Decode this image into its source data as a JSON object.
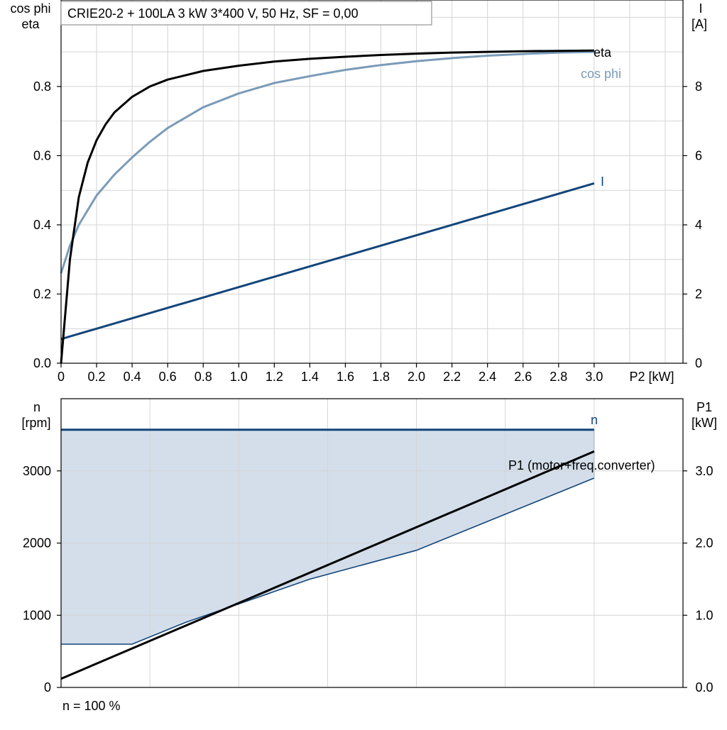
{
  "colors": {
    "eta": "#000000",
    "cos_phi": "#7b9bb8",
    "current": "#12457a",
    "speed": "#12457a",
    "p1": "#000000",
    "area_fill": "#d3deea",
    "grid": "#d4d4d4"
  },
  "chart_data": [
    {
      "type": "line",
      "title": "CRIE20-2 + 100LA   3 kW   3*400 V, 50 Hz, SF = 0,00",
      "xlabel": "P2 [kW]",
      "ylabel_left": [
        "cos phi",
        "eta"
      ],
      "ylabel_right": [
        "I",
        "[A]"
      ],
      "xlim": [
        0,
        3.5
      ],
      "ylim_left": [
        0,
        1.05
      ],
      "ylim_right": [
        0,
        10.5
      ],
      "grid": true,
      "x_ticks": [
        "0",
        "0.2",
        "0.4",
        "0.6",
        "0.8",
        "1.0",
        "1.2",
        "1.4",
        "1.6",
        "1.8",
        "2.0",
        "2.2",
        "2.4",
        "2.6",
        "2.8",
        "3.0"
      ],
      "y_ticks_left": [
        "0.0",
        "0.2",
        "0.4",
        "0.6",
        "0.8"
      ],
      "y_ticks_right": [
        "0",
        "2",
        "4",
        "6",
        "8"
      ],
      "series": [
        {
          "name": "eta",
          "axis": "left",
          "x": [
            0,
            0.05,
            0.1,
            0.15,
            0.2,
            0.25,
            0.3,
            0.4,
            0.5,
            0.6,
            0.8,
            1.0,
            1.2,
            1.4,
            1.6,
            1.8,
            2.0,
            2.2,
            2.4,
            2.6,
            2.8,
            3.0
          ],
          "values": [
            0,
            0.3,
            0.48,
            0.58,
            0.645,
            0.69,
            0.725,
            0.77,
            0.8,
            0.82,
            0.845,
            0.86,
            0.872,
            0.88,
            0.886,
            0.891,
            0.895,
            0.898,
            0.9,
            0.902,
            0.903,
            0.904
          ]
        },
        {
          "name": "cos phi",
          "axis": "left",
          "x": [
            0,
            0.05,
            0.1,
            0.2,
            0.3,
            0.4,
            0.5,
            0.6,
            0.8,
            1.0,
            1.2,
            1.4,
            1.6,
            1.8,
            2.0,
            2.2,
            2.4,
            2.6,
            2.8,
            3.0
          ],
          "values": [
            0.26,
            0.34,
            0.4,
            0.485,
            0.545,
            0.595,
            0.64,
            0.68,
            0.74,
            0.78,
            0.81,
            0.83,
            0.848,
            0.862,
            0.873,
            0.882,
            0.889,
            0.894,
            0.898,
            0.9
          ]
        },
        {
          "name": "I",
          "axis": "right",
          "x": [
            0,
            3.0
          ],
          "values": [
            0.7,
            5.2
          ]
        }
      ]
    },
    {
      "type": "area",
      "ylabel_left": [
        "n",
        "[rpm]"
      ],
      "ylabel_right": [
        "P1",
        "[kW]"
      ],
      "xlim": [
        0,
        3.5
      ],
      "ylim_left": [
        0,
        4000
      ],
      "ylim_right": [
        0,
        4.0
      ],
      "grid": true,
      "y_ticks_left": [
        "0",
        "1000",
        "2000",
        "3000"
      ],
      "y_ticks_right": [
        "0.0",
        "1.0",
        "2.0",
        "3.0"
      ],
      "footnote": "n = 100 %",
      "series": [
        {
          "name": "n",
          "axis": "left",
          "x": [
            0,
            3.0
          ],
          "values": [
            3570,
            3570
          ]
        },
        {
          "name": "lower boundary",
          "axis": "left",
          "x": [
            0,
            0.4,
            0.7,
            1.4,
            2.0,
            3.0
          ],
          "values": [
            600,
            600,
            900,
            1500,
            1900,
            2900
          ]
        },
        {
          "name": "P1 (motor+freq.converter)",
          "axis": "right",
          "x": [
            0,
            3.0
          ],
          "values": [
            0.12,
            3.27
          ]
        }
      ]
    }
  ]
}
